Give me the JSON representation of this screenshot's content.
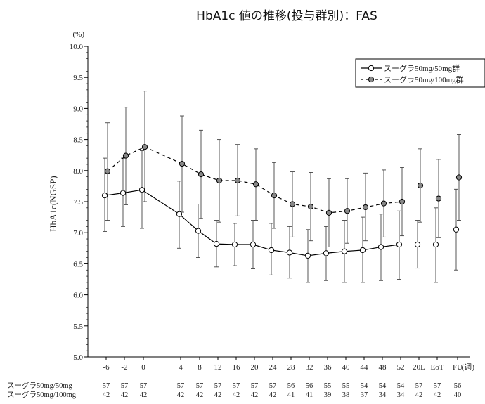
{
  "chart_data": {
    "type": "line",
    "title": "HbA1c 値の推移(投与群別)：FAS",
    "ylabel": "HbA1c(NGSP)",
    "yunit": "(%)",
    "xunit": "(週)",
    "ylim": [
      5.0,
      10.0
    ],
    "yticks": [
      "5.0",
      "5.5",
      "6.0",
      "6.5",
      "7.0",
      "7.5",
      "8.0",
      "8.5",
      "9.0",
      "9.5",
      "10.0"
    ],
    "categories": [
      "-6",
      "-2",
      "0",
      "4",
      "8",
      "12",
      "16",
      "20",
      "24",
      "28",
      "32",
      "36",
      "40",
      "44",
      "48",
      "52",
      "20L",
      "EoT",
      "FU"
    ],
    "grid": false,
    "legend_position": "top-right",
    "series": [
      {
        "name": "スーグラ50mg/50mg群",
        "marker": "open-circle",
        "line_style": "solid",
        "connected_count": 16,
        "values": [
          7.6,
          7.64,
          7.69,
          7.3,
          7.03,
          6.82,
          6.81,
          6.81,
          6.72,
          6.68,
          6.63,
          6.67,
          6.7,
          6.72,
          6.77,
          6.81,
          6.81,
          6.81,
          7.05
        ],
        "upper": [
          8.2,
          8.2,
          8.32,
          7.83,
          7.46,
          7.2,
          7.15,
          7.2,
          7.15,
          7.1,
          7.05,
          7.1,
          7.2,
          7.25,
          7.3,
          7.35,
          7.2,
          7.4,
          7.7
        ],
        "lower": [
          7.02,
          7.1,
          7.07,
          6.75,
          6.6,
          6.45,
          6.47,
          6.42,
          6.32,
          6.27,
          6.2,
          6.23,
          6.2,
          6.2,
          6.23,
          6.25,
          6.43,
          6.2,
          6.4
        ],
        "n": [
          "57",
          "57",
          "57",
          "57",
          "57",
          "57",
          "57",
          "57",
          "57",
          "56",
          "56",
          "55",
          "55",
          "54",
          "54",
          "54",
          "57",
          "57",
          "56"
        ]
      },
      {
        "name": "スーグラ50mg/100mg群",
        "marker": "filled-circle",
        "line_style": "dashed",
        "connected_count": 16,
        "values": [
          7.99,
          8.24,
          8.38,
          8.11,
          7.94,
          7.84,
          7.84,
          7.78,
          7.6,
          7.46,
          7.42,
          7.32,
          7.35,
          7.41,
          7.47,
          7.5,
          7.76,
          7.55,
          7.89
        ],
        "upper": [
          8.77,
          9.02,
          9.28,
          8.88,
          8.65,
          8.5,
          8.42,
          8.35,
          8.13,
          7.98,
          7.97,
          7.87,
          7.87,
          7.96,
          8.01,
          8.05,
          8.35,
          8.18,
          8.58
        ],
        "lower": [
          7.2,
          7.45,
          7.5,
          7.33,
          7.23,
          7.17,
          7.27,
          7.2,
          7.07,
          6.93,
          6.87,
          6.77,
          6.83,
          6.87,
          6.93,
          6.95,
          7.17,
          6.92,
          7.2
        ],
        "n": [
          "42",
          "42",
          "42",
          "42",
          "42",
          "42",
          "42",
          "42",
          "42",
          "41",
          "41",
          "39",
          "38",
          "37",
          "34",
          "34",
          "42",
          "42",
          "40"
        ]
      }
    ],
    "n_table_labels": [
      "スーグラ50mg/50mg",
      "スーグラ50mg/100mg"
    ]
  }
}
